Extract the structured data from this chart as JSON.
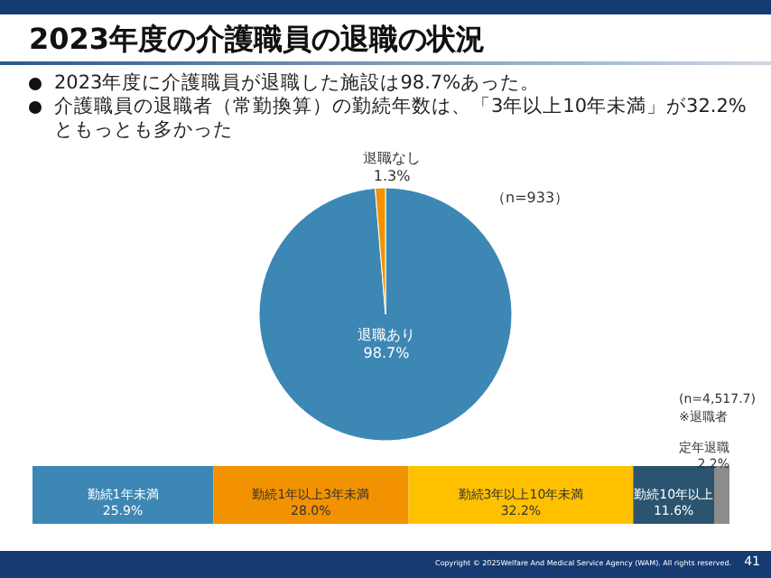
{
  "chart_data": [
    {
      "type": "pie",
      "title": "2023年度の介護職員の退職の状況",
      "annotations": [
        "2023年度に介護職員が退職した施設は98.7%あった。",
        "介護職員の退職者（常勤換算）の勤続年数は、「3年以上10年未満」が32.2%ともっとも多かった",
        "（n=933）"
      ],
      "categories": [
        "退職あり",
        "退職なし"
      ],
      "values": [
        98.7,
        1.3
      ],
      "value_labels": [
        "98.7%",
        "1.3%"
      ],
      "colors": [
        "#3d87b5",
        "#f39200"
      ]
    },
    {
      "type": "bar",
      "orientation": "horizontal",
      "stacked": true,
      "categories": [
        null
      ],
      "annotations": [
        "(n=4,517.7)",
        "※退職者",
        "Copyright © 2025Welfare And Medical Service Agency (WAM). All rights reserved.",
        "41"
      ],
      "series": [
        {
          "name": "勤続1年未満",
          "color": "#3d87b5",
          "values": [
            25.9
          ],
          "value_labels": [
            "25.9%"
          ]
        },
        {
          "name": "勤続1年以上3年未満",
          "color": "#f39200",
          "values": [
            28.0
          ],
          "value_labels": [
            "28.0%"
          ]
        },
        {
          "name": "勤続3年以上10年未満",
          "color": "#ffc000",
          "values": [
            32.2
          ],
          "value_labels": [
            "32.2%"
          ]
        },
        {
          "name": "勤続10年以上",
          "color": "#2a5470",
          "values": [
            11.6
          ],
          "value_labels": [
            "11.6%"
          ]
        },
        {
          "name": "定年退職",
          "color": "#8c8c8c",
          "values": [
            2.2
          ],
          "value_labels": [
            "2.2%"
          ]
        }
      ]
    }
  ]
}
